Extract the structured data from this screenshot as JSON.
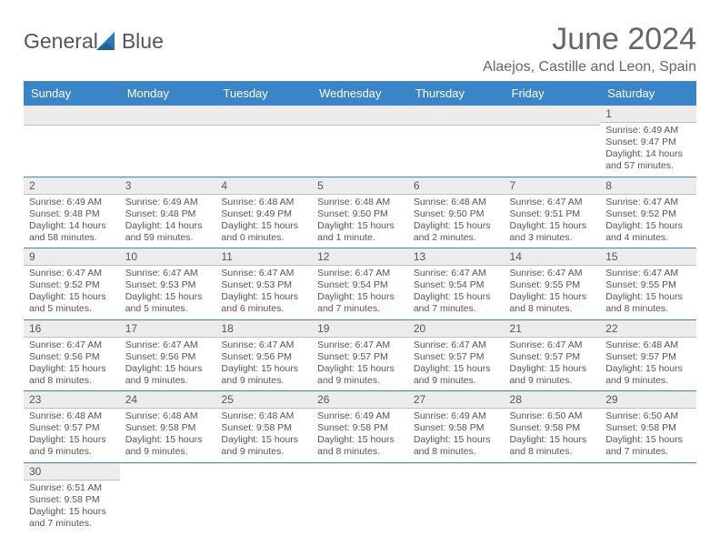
{
  "logo": {
    "text1": "General",
    "text2": "Blue"
  },
  "title": "June 2024",
  "location": "Alaejos, Castille and Leon, Spain",
  "day_headers": [
    "Sunday",
    "Monday",
    "Tuesday",
    "Wednesday",
    "Thursday",
    "Friday",
    "Saturday"
  ],
  "colors": {
    "header_bg": "#3985c7",
    "header_fg": "#ffffff",
    "daynum_bg": "#ececec",
    "text": "#555555",
    "rule": "#3985c7"
  },
  "weeks": [
    [
      {
        "blank": true
      },
      {
        "blank": true
      },
      {
        "blank": true
      },
      {
        "blank": true
      },
      {
        "blank": true
      },
      {
        "blank": true
      },
      {
        "day": "1",
        "sunrise": "Sunrise: 6:49 AM",
        "sunset": "Sunset: 9:47 PM",
        "daylight": "Daylight: 14 hours and 57 minutes."
      }
    ],
    [
      {
        "day": "2",
        "sunrise": "Sunrise: 6:49 AM",
        "sunset": "Sunset: 9:48 PM",
        "daylight": "Daylight: 14 hours and 58 minutes."
      },
      {
        "day": "3",
        "sunrise": "Sunrise: 6:49 AM",
        "sunset": "Sunset: 9:48 PM",
        "daylight": "Daylight: 14 hours and 59 minutes."
      },
      {
        "day": "4",
        "sunrise": "Sunrise: 6:48 AM",
        "sunset": "Sunset: 9:49 PM",
        "daylight": "Daylight: 15 hours and 0 minutes."
      },
      {
        "day": "5",
        "sunrise": "Sunrise: 6:48 AM",
        "sunset": "Sunset: 9:50 PM",
        "daylight": "Daylight: 15 hours and 1 minute."
      },
      {
        "day": "6",
        "sunrise": "Sunrise: 6:48 AM",
        "sunset": "Sunset: 9:50 PM",
        "daylight": "Daylight: 15 hours and 2 minutes."
      },
      {
        "day": "7",
        "sunrise": "Sunrise: 6:47 AM",
        "sunset": "Sunset: 9:51 PM",
        "daylight": "Daylight: 15 hours and 3 minutes."
      },
      {
        "day": "8",
        "sunrise": "Sunrise: 6:47 AM",
        "sunset": "Sunset: 9:52 PM",
        "daylight": "Daylight: 15 hours and 4 minutes."
      }
    ],
    [
      {
        "day": "9",
        "sunrise": "Sunrise: 6:47 AM",
        "sunset": "Sunset: 9:52 PM",
        "daylight": "Daylight: 15 hours and 5 minutes."
      },
      {
        "day": "10",
        "sunrise": "Sunrise: 6:47 AM",
        "sunset": "Sunset: 9:53 PM",
        "daylight": "Daylight: 15 hours and 5 minutes."
      },
      {
        "day": "11",
        "sunrise": "Sunrise: 6:47 AM",
        "sunset": "Sunset: 9:53 PM",
        "daylight": "Daylight: 15 hours and 6 minutes."
      },
      {
        "day": "12",
        "sunrise": "Sunrise: 6:47 AM",
        "sunset": "Sunset: 9:54 PM",
        "daylight": "Daylight: 15 hours and 7 minutes."
      },
      {
        "day": "13",
        "sunrise": "Sunrise: 6:47 AM",
        "sunset": "Sunset: 9:54 PM",
        "daylight": "Daylight: 15 hours and 7 minutes."
      },
      {
        "day": "14",
        "sunrise": "Sunrise: 6:47 AM",
        "sunset": "Sunset: 9:55 PM",
        "daylight": "Daylight: 15 hours and 8 minutes."
      },
      {
        "day": "15",
        "sunrise": "Sunrise: 6:47 AM",
        "sunset": "Sunset: 9:55 PM",
        "daylight": "Daylight: 15 hours and 8 minutes."
      }
    ],
    [
      {
        "day": "16",
        "sunrise": "Sunrise: 6:47 AM",
        "sunset": "Sunset: 9:56 PM",
        "daylight": "Daylight: 15 hours and 8 minutes."
      },
      {
        "day": "17",
        "sunrise": "Sunrise: 6:47 AM",
        "sunset": "Sunset: 9:56 PM",
        "daylight": "Daylight: 15 hours and 9 minutes."
      },
      {
        "day": "18",
        "sunrise": "Sunrise: 6:47 AM",
        "sunset": "Sunset: 9:56 PM",
        "daylight": "Daylight: 15 hours and 9 minutes."
      },
      {
        "day": "19",
        "sunrise": "Sunrise: 6:47 AM",
        "sunset": "Sunset: 9:57 PM",
        "daylight": "Daylight: 15 hours and 9 minutes."
      },
      {
        "day": "20",
        "sunrise": "Sunrise: 6:47 AM",
        "sunset": "Sunset: 9:57 PM",
        "daylight": "Daylight: 15 hours and 9 minutes."
      },
      {
        "day": "21",
        "sunrise": "Sunrise: 6:47 AM",
        "sunset": "Sunset: 9:57 PM",
        "daylight": "Daylight: 15 hours and 9 minutes."
      },
      {
        "day": "22",
        "sunrise": "Sunrise: 6:48 AM",
        "sunset": "Sunset: 9:57 PM",
        "daylight": "Daylight: 15 hours and 9 minutes."
      }
    ],
    [
      {
        "day": "23",
        "sunrise": "Sunrise: 6:48 AM",
        "sunset": "Sunset: 9:57 PM",
        "daylight": "Daylight: 15 hours and 9 minutes."
      },
      {
        "day": "24",
        "sunrise": "Sunrise: 6:48 AM",
        "sunset": "Sunset: 9:58 PM",
        "daylight": "Daylight: 15 hours and 9 minutes."
      },
      {
        "day": "25",
        "sunrise": "Sunrise: 6:48 AM",
        "sunset": "Sunset: 9:58 PM",
        "daylight": "Daylight: 15 hours and 9 minutes."
      },
      {
        "day": "26",
        "sunrise": "Sunrise: 6:49 AM",
        "sunset": "Sunset: 9:58 PM",
        "daylight": "Daylight: 15 hours and 8 minutes."
      },
      {
        "day": "27",
        "sunrise": "Sunrise: 6:49 AM",
        "sunset": "Sunset: 9:58 PM",
        "daylight": "Daylight: 15 hours and 8 minutes."
      },
      {
        "day": "28",
        "sunrise": "Sunrise: 6:50 AM",
        "sunset": "Sunset: 9:58 PM",
        "daylight": "Daylight: 15 hours and 8 minutes."
      },
      {
        "day": "29",
        "sunrise": "Sunrise: 6:50 AM",
        "sunset": "Sunset: 9:58 PM",
        "daylight": "Daylight: 15 hours and 7 minutes."
      }
    ],
    [
      {
        "day": "30",
        "sunrise": "Sunrise: 6:51 AM",
        "sunset": "Sunset: 9:58 PM",
        "daylight": "Daylight: 15 hours and 7 minutes."
      },
      {
        "blank": true
      },
      {
        "blank": true
      },
      {
        "blank": true
      },
      {
        "blank": true
      },
      {
        "blank": true
      },
      {
        "blank": true
      }
    ]
  ]
}
